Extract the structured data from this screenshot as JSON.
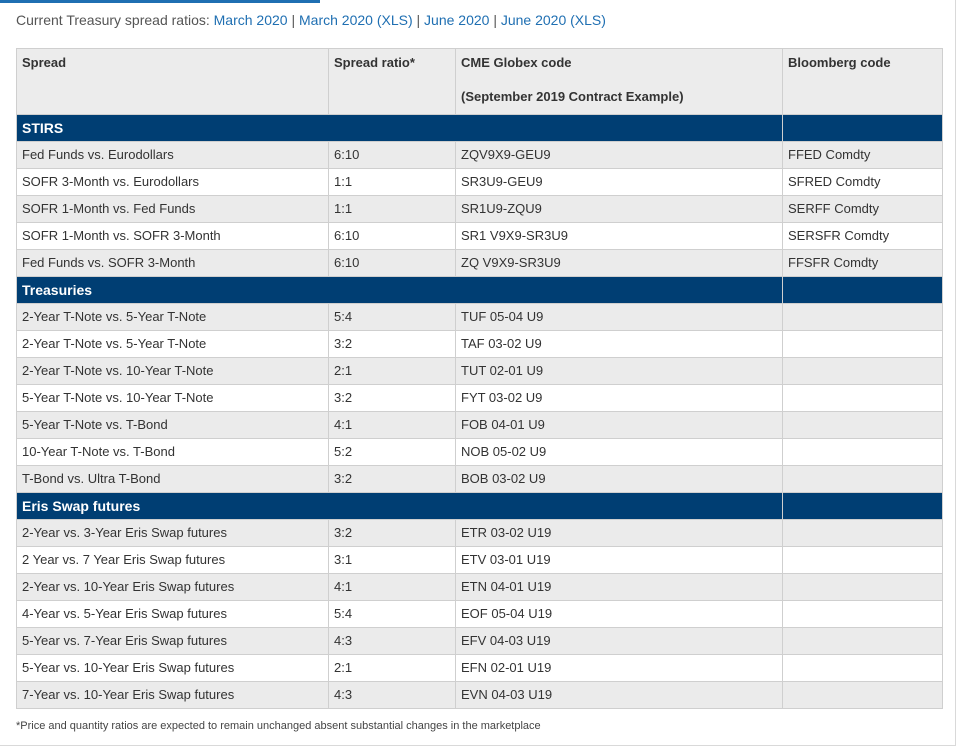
{
  "intro": {
    "label": "Current Treasury spread ratios:",
    "links": [
      "March 2020",
      "March 2020 (XLS)",
      "June 2020",
      "June 2020 (XLS)"
    ],
    "separator": "|"
  },
  "table": {
    "headers": {
      "spread": "Spread",
      "ratio": "Spread ratio*",
      "cme_line1": "CME Globex code",
      "cme_line2": "(September 2019 Contract Example)",
      "bloomberg": "Bloomberg code"
    },
    "sections": [
      {
        "title": "STIRS",
        "rows": [
          {
            "spread": "Fed Funds vs. Eurodollars",
            "ratio": "6:10",
            "cme": "ZQV9X9-GEU9",
            "bloomberg": "FFED Comdty"
          },
          {
            "spread": "SOFR 3-Month vs. Eurodollars",
            "ratio": "1:1",
            "cme": "SR3U9-GEU9",
            "bloomberg": "SFRED Comdty"
          },
          {
            "spread": "SOFR 1-Month vs. Fed Funds",
            "ratio": "1:1",
            "cme": "SR1U9-ZQU9",
            "bloomberg": "SERFF Comdty"
          },
          {
            "spread": "SOFR 1-Month vs. SOFR 3-Month",
            "ratio": "6:10",
            "cme": "SR1 V9X9-SR3U9",
            "bloomberg": "SERSFR Comdty"
          },
          {
            "spread": "Fed Funds vs. SOFR 3-Month",
            "ratio": "6:10",
            "cme": "ZQ V9X9-SR3U9",
            "bloomberg": "FFSFR Comdty"
          }
        ]
      },
      {
        "title": "Treasuries",
        "rows": [
          {
            "spread": "2-Year T-Note vs. 5-Year T-Note",
            "ratio": "5:4",
            "cme": "TUF 05-04 U9",
            "bloomberg": ""
          },
          {
            "spread": "2-Year T-Note vs. 5-Year T-Note",
            "ratio": "3:2",
            "cme": "TAF 03-02 U9",
            "bloomberg": ""
          },
          {
            "spread": "2-Year T-Note vs. 10-Year T-Note",
            "ratio": "2:1",
            "cme": "TUT 02-01 U9",
            "bloomberg": ""
          },
          {
            "spread": "5-Year T-Note vs. 10-Year T-Note",
            "ratio": "3:2",
            "cme": "FYT 03-02 U9",
            "bloomberg": ""
          },
          {
            "spread": "5-Year T-Note vs. T-Bond",
            "ratio": "4:1",
            "cme": "FOB 04-01 U9",
            "bloomberg": ""
          },
          {
            "spread": "10-Year T-Note vs. T-Bond",
            "ratio": "5:2",
            "cme": "NOB 05-02 U9",
            "bloomberg": ""
          },
          {
            "spread": "T-Bond vs. Ultra T-Bond",
            "ratio": "3:2",
            "cme": "BOB 03-02 U9",
            "bloomberg": ""
          }
        ]
      },
      {
        "title": "Eris Swap futures",
        "rows": [
          {
            "spread": "2-Year vs. 3-Year Eris Swap futures",
            "ratio": "3:2",
            "cme": "ETR 03-02 U19",
            "bloomberg": ""
          },
          {
            "spread": "2 Year vs. 7 Year Eris Swap futures",
            "ratio": "3:1",
            "cme": "ETV 03-01 U19",
            "bloomberg": ""
          },
          {
            "spread": "2-Year vs. 10-Year Eris Swap futures",
            "ratio": "4:1",
            "cme": "ETN 04-01 U19",
            "bloomberg": ""
          },
          {
            "spread": "4-Year vs. 5-Year Eris Swap futures",
            "ratio": "5:4",
            "cme": "EOF 05-04 U19",
            "bloomberg": ""
          },
          {
            "spread": "5-Year vs. 7-Year Eris Swap futures",
            "ratio": "4:3",
            "cme": "EFV 04-03 U19",
            "bloomberg": ""
          },
          {
            "spread": "5-Year vs. 10-Year Eris Swap futures",
            "ratio": "2:1",
            "cme": "EFN 02-01 U19",
            "bloomberg": ""
          },
          {
            "spread": "7-Year vs. 10-Year Eris Swap futures",
            "ratio": "4:3",
            "cme": "EVN 04-03 U19",
            "bloomberg": ""
          }
        ]
      }
    ]
  },
  "footnote": "*Price and quantity ratios are expected to remain unchanged absent substantial changes in the marketplace",
  "colors": {
    "section_bg": "#003e73",
    "link": "#1f6fb2",
    "header_bg": "#ececec",
    "alt_row_bg": "#ebebeb"
  }
}
